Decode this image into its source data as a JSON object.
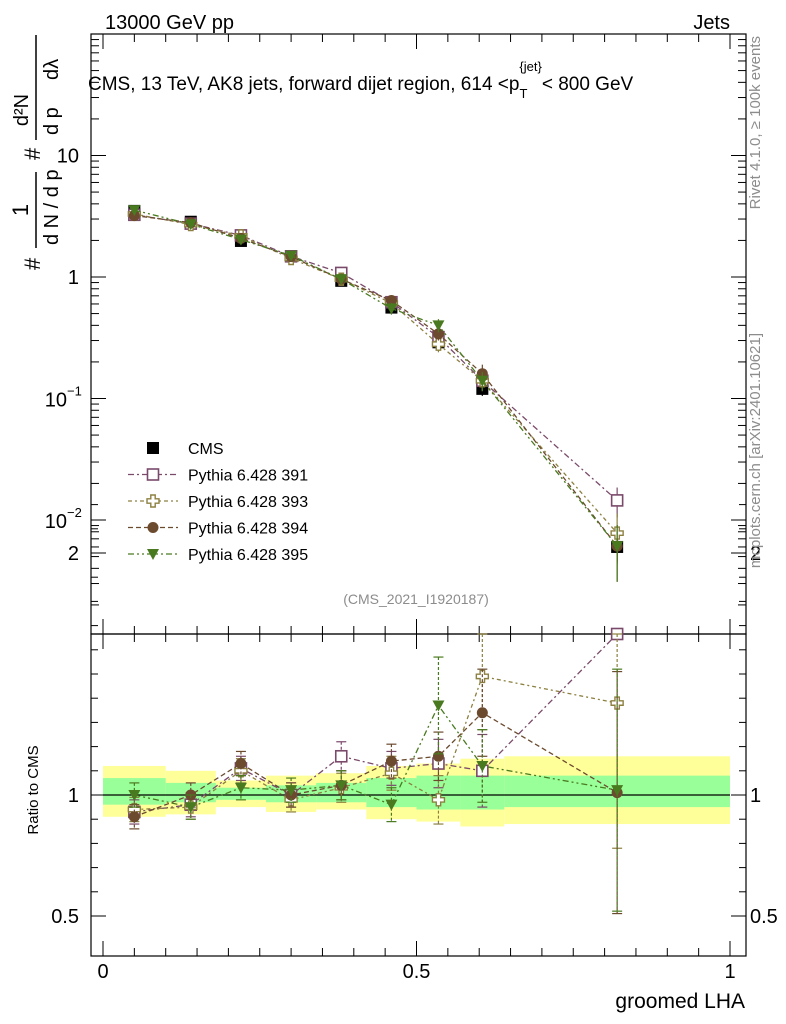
{
  "header": {
    "energy_label": "13000 GeV pp",
    "category_label": "Jets",
    "title_main": "CMS, 13 TeV, AK8 jets, forward dijet region, 614 <p",
    "title_sub": "T",
    "title_sup": "{jet}",
    "title_end": "< 800 GeV"
  },
  "side_labels": {
    "rivet": "Rivet 4.1.0, ≥ 100k events",
    "mcplots": "mcplots.cern.ch [arXiv:2401.10621]"
  },
  "analysis_tag": "(CMS_2021_I1920187)",
  "chart_data": [
    {
      "type": "scatter",
      "panel": "main",
      "yscale": "log",
      "xlim": [
        0,
        1
      ],
      "ylim": [
        0.0015,
        25
      ],
      "ylabel": "1/N dN/dp_T dλ (normalized)",
      "ytick_labels": [
        "10^-2",
        "10^-1",
        "1",
        "10"
      ],
      "x": [
        0.05,
        0.14,
        0.22,
        0.3,
        0.38,
        0.46,
        0.535,
        0.605,
        0.82
      ],
      "series": [
        {
          "name": "CMS",
          "color": "#000000",
          "marker": "square-filled",
          "values": [
            3.5,
            2.85,
            1.98,
            1.48,
            0.93,
            0.56,
            0.29,
            0.12,
            0.006
          ],
          "errors": [
            0.25,
            0.2,
            0.15,
            0.1,
            0.07,
            0.05,
            0.03,
            0.015,
            0.0015
          ]
        },
        {
          "name": "Pythia 6.428 391",
          "color": "#7a4a6a",
          "marker": "square-open",
          "values": [
            3.25,
            2.75,
            2.2,
            1.48,
            1.08,
            0.62,
            0.32,
            0.14,
            0.0145
          ],
          "errors": [
            0.25,
            0.2,
            0.15,
            0.1,
            0.08,
            0.06,
            0.04,
            0.025,
            0.004
          ]
        },
        {
          "name": "Pythia 6.428 393",
          "color": "#8c8040",
          "marker": "cross-open",
          "values": [
            3.3,
            2.7,
            2.18,
            1.42,
            0.96,
            0.61,
            0.28,
            0.14,
            0.0078
          ],
          "errors": [
            0.25,
            0.2,
            0.15,
            0.1,
            0.07,
            0.06,
            0.04,
            0.025,
            0.0035
          ]
        },
        {
          "name": "Pythia 6.428 394",
          "color": "#6b4a2e",
          "marker": "circle-filled",
          "values": [
            3.2,
            2.8,
            2.08,
            1.47,
            0.96,
            0.64,
            0.34,
            0.16,
            0.0061
          ],
          "errors": [
            0.25,
            0.2,
            0.15,
            0.1,
            0.07,
            0.06,
            0.04,
            0.03,
            0.003
          ]
        },
        {
          "name": "Pythia 6.428 395",
          "color": "#4a7a20",
          "marker": "triangle-down-filled",
          "values": [
            3.55,
            2.72,
            2.03,
            1.5,
            0.96,
            0.55,
            0.4,
            0.14,
            0.0061
          ],
          "errors": [
            0.25,
            0.2,
            0.15,
            0.1,
            0.07,
            0.06,
            0.05,
            0.025,
            0.003
          ]
        }
      ]
    },
    {
      "type": "scatter",
      "panel": "ratio",
      "ylabel": "Ratio to CMS",
      "xlabel": "groomed LHA",
      "xlim": [
        0,
        1
      ],
      "ylim": [
        0.35,
        2.25
      ],
      "xtick_labels": [
        "0",
        "0.5",
        "1"
      ],
      "ytick_labels": [
        "0.5",
        "1",
        "2"
      ],
      "x": [
        0.05,
        0.14,
        0.22,
        0.3,
        0.38,
        0.46,
        0.535,
        0.605,
        0.82
      ],
      "bands": {
        "bin_edges": [
          0,
          0.1,
          0.18,
          0.26,
          0.34,
          0.42,
          0.5,
          0.57,
          0.64,
          1.0
        ],
        "yellow_lo": [
          0.91,
          0.92,
          0.95,
          0.93,
          0.94,
          0.9,
          0.89,
          0.87,
          0.88
        ],
        "yellow_hi": [
          1.12,
          1.1,
          1.06,
          1.08,
          1.09,
          1.12,
          1.13,
          1.15,
          1.16
        ],
        "green_lo": [
          0.96,
          0.97,
          0.98,
          0.97,
          0.97,
          0.95,
          0.94,
          0.94,
          0.95
        ],
        "green_hi": [
          1.07,
          1.05,
          1.03,
          1.04,
          1.05,
          1.07,
          1.08,
          1.08,
          1.08
        ]
      },
      "series": [
        {
          "name": "Pythia 6.428 391",
          "color": "#7a4a6a",
          "marker": "square-open",
          "values": [
            0.93,
            0.96,
            1.11,
            1.0,
            1.16,
            1.11,
            1.13,
            1.1,
            2.25
          ],
          "errors": [
            0.05,
            0.05,
            0.05,
            0.05,
            0.06,
            0.07,
            0.1,
            0.15,
            0.6
          ]
        },
        {
          "name": "Pythia 6.428 393",
          "color": "#8c8040",
          "marker": "cross-open",
          "values": [
            0.94,
            0.95,
            1.1,
            0.98,
            1.03,
            1.09,
            0.98,
            1.49,
            1.38
          ],
          "errors": [
            0.05,
            0.05,
            0.05,
            0.05,
            0.06,
            0.07,
            0.1,
            0.22,
            0.6
          ]
        },
        {
          "name": "Pythia 6.428 394",
          "color": "#6b4a2e",
          "marker": "circle-filled",
          "values": [
            0.91,
            1.0,
            1.13,
            1.0,
            1.04,
            1.14,
            1.16,
            1.34,
            1.01
          ],
          "errors": [
            0.05,
            0.05,
            0.05,
            0.05,
            0.06,
            0.07,
            0.1,
            0.18,
            0.5
          ]
        },
        {
          "name": "Pythia 6.428 395",
          "color": "#4a7a20",
          "marker": "triangle-down-filled",
          "values": [
            1.0,
            0.95,
            1.03,
            1.02,
            1.04,
            0.96,
            1.37,
            1.12,
            1.02
          ],
          "errors": [
            0.05,
            0.05,
            0.05,
            0.05,
            0.06,
            0.07,
            0.2,
            0.15,
            0.5
          ]
        }
      ]
    }
  ]
}
